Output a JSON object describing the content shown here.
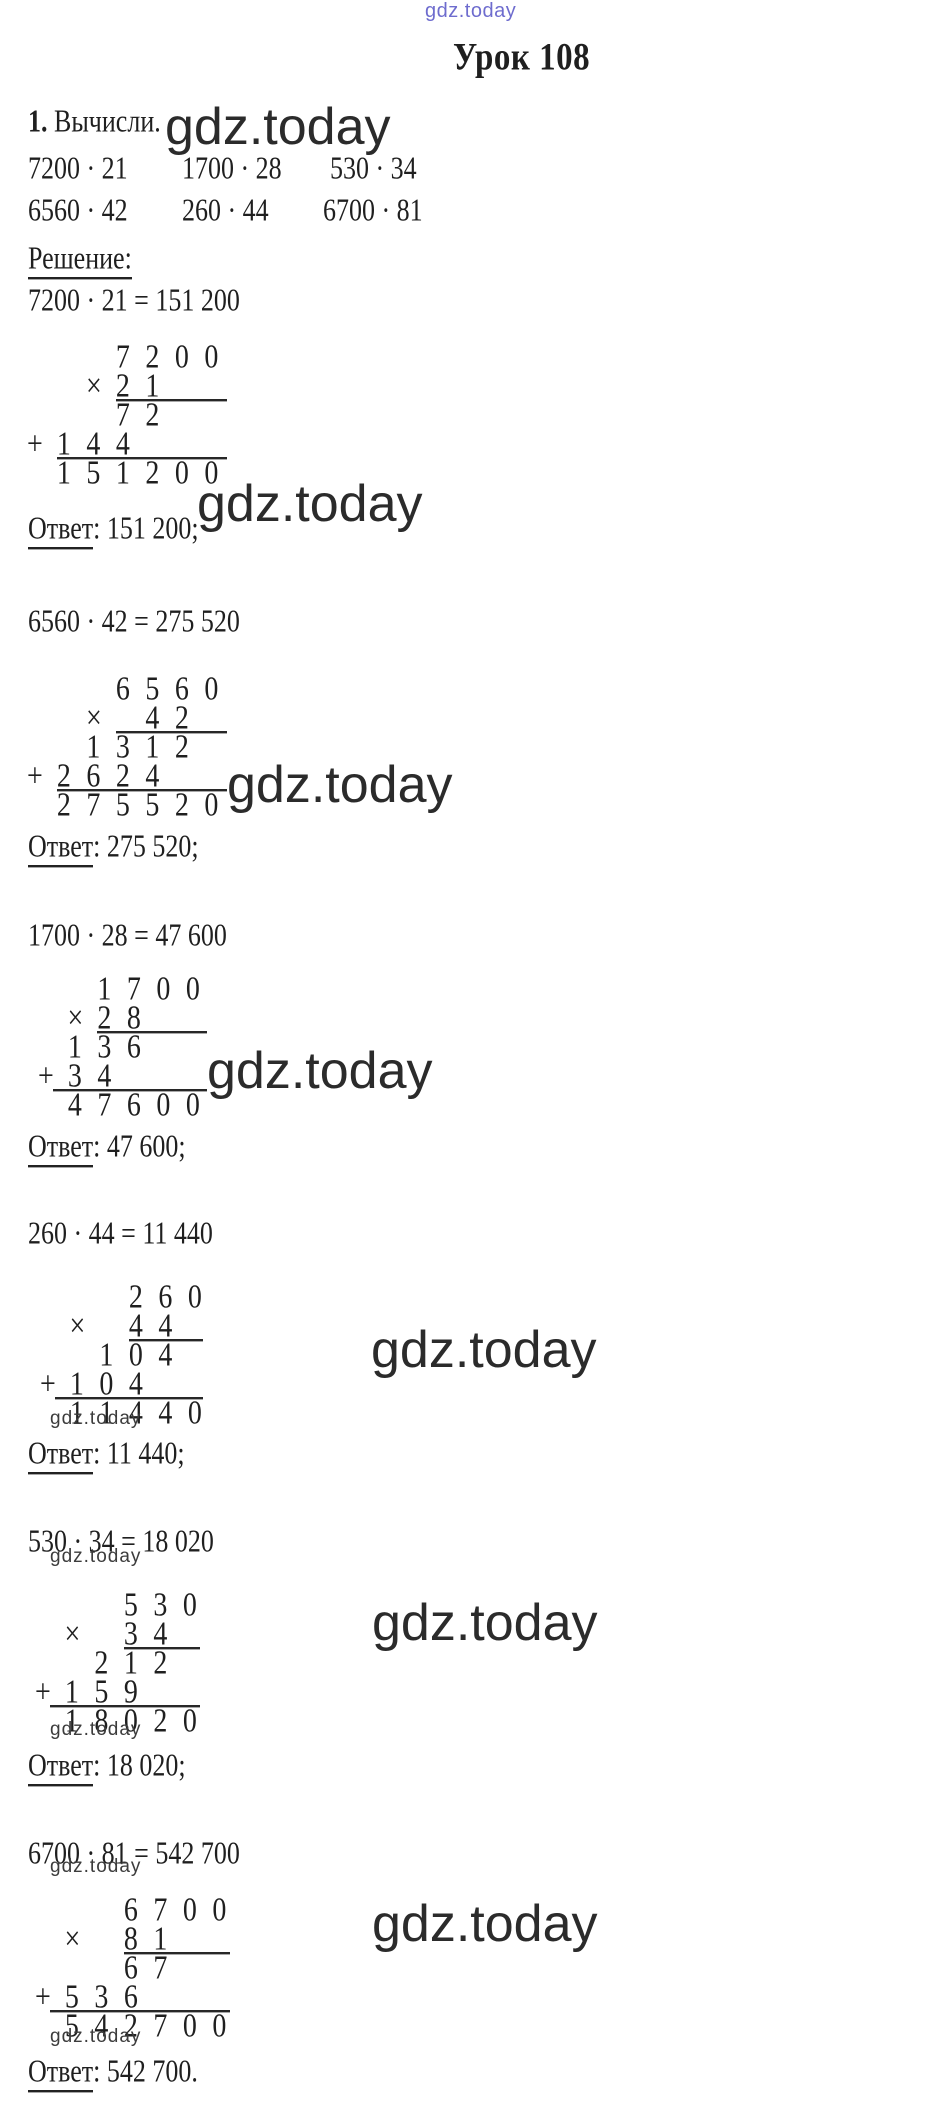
{
  "header": {
    "title": "Урок 108",
    "task_number": "1.",
    "task_text": "Вычисли.",
    "solution_label": "Решение:"
  },
  "watermark": {
    "text": "gdz.today",
    "blue_color": "#5553c6"
  },
  "problems": {
    "row1": [
      "7200 · 21",
      "1700 · 28",
      "530 · 34"
    ],
    "row2": [
      "6560 · 42",
      "260 · 44",
      "6700 · 81"
    ]
  },
  "solutions": [
    {
      "equation": "7200 · 21 = 151 200",
      "answer_label": "Ответ",
      "answer_rest": ": 151 200;",
      "mult": {
        "rows": [
          {
            "t": "      7 2 0 0"
          },
          {
            "t": "    × 2 1",
            "line_from": 6
          },
          {
            "t": "      7 2"
          },
          {
            "t": "+ 1 4 4",
            "line_from": 2
          },
          {
            "t": "  1 5 1 2 0 0"
          }
        ]
      }
    },
    {
      "equation": "6560 · 42 = 275 520",
      "answer_label": "Ответ",
      "answer_rest": ": 275 520;",
      "mult": {
        "rows": [
          {
            "t": "      6 5 6 0"
          },
          {
            "t": "    ×   4 2",
            "line_from": 6
          },
          {
            "t": "    1 3 1 2"
          },
          {
            "t": "+ 2 6 2 4",
            "line_from": 2
          },
          {
            "t": "  2 7 5 5 2 0"
          }
        ]
      }
    },
    {
      "equation": "1700 · 28 = 47 600",
      "answer_label": "Ответ",
      "answer_rest": ": 47 600;",
      "mult": {
        "rows": [
          {
            "t": "    1 7 0 0"
          },
          {
            "t": "  × 2 8",
            "line_from": 4
          },
          {
            "t": "  1 3 6"
          },
          {
            "t": "+ 3 4",
            "line_from": 1
          },
          {
            "t": "  4 7 6 0 0"
          }
        ]
      }
    },
    {
      "equation": "260 · 44 = 11 440",
      "answer_label": "Ответ",
      "answer_rest": ": 11 440;",
      "mult": {
        "rows": [
          {
            "t": "      2 6 0"
          },
          {
            "t": "  ×   4 4",
            "line_from": 6
          },
          {
            "t": "    1 0 4"
          },
          {
            "t": "+ 1 0 4",
            "line_from": 1
          },
          {
            "t": "  1 1 4 4 0"
          }
        ]
      }
    },
    {
      "equation": "530 · 34 = 18 020",
      "answer_label": "Ответ",
      "answer_rest": ": 18 020;",
      "mult": {
        "rows": [
          {
            "t": "      5 3 0"
          },
          {
            "t": "  ×   3 4",
            "line_from": 6
          },
          {
            "t": "    2 1 2"
          },
          {
            "t": "+ 1 5 9",
            "line_from": 1
          },
          {
            "t": "  1 8 0 2 0"
          }
        ]
      }
    },
    {
      "equation": "6700 · 81 = 542 700",
      "answer_label": "Ответ",
      "answer_rest": ": 542 700.",
      "mult": {
        "rows": [
          {
            "t": "      6 7 0 0"
          },
          {
            "t": "  ×   8 1",
            "line_from": 6
          },
          {
            "t": "      6 7"
          },
          {
            "t": "+ 5 3 6",
            "line_from": 1
          },
          {
            "t": "  5 4 2 7 0 0"
          }
        ]
      }
    }
  ]
}
